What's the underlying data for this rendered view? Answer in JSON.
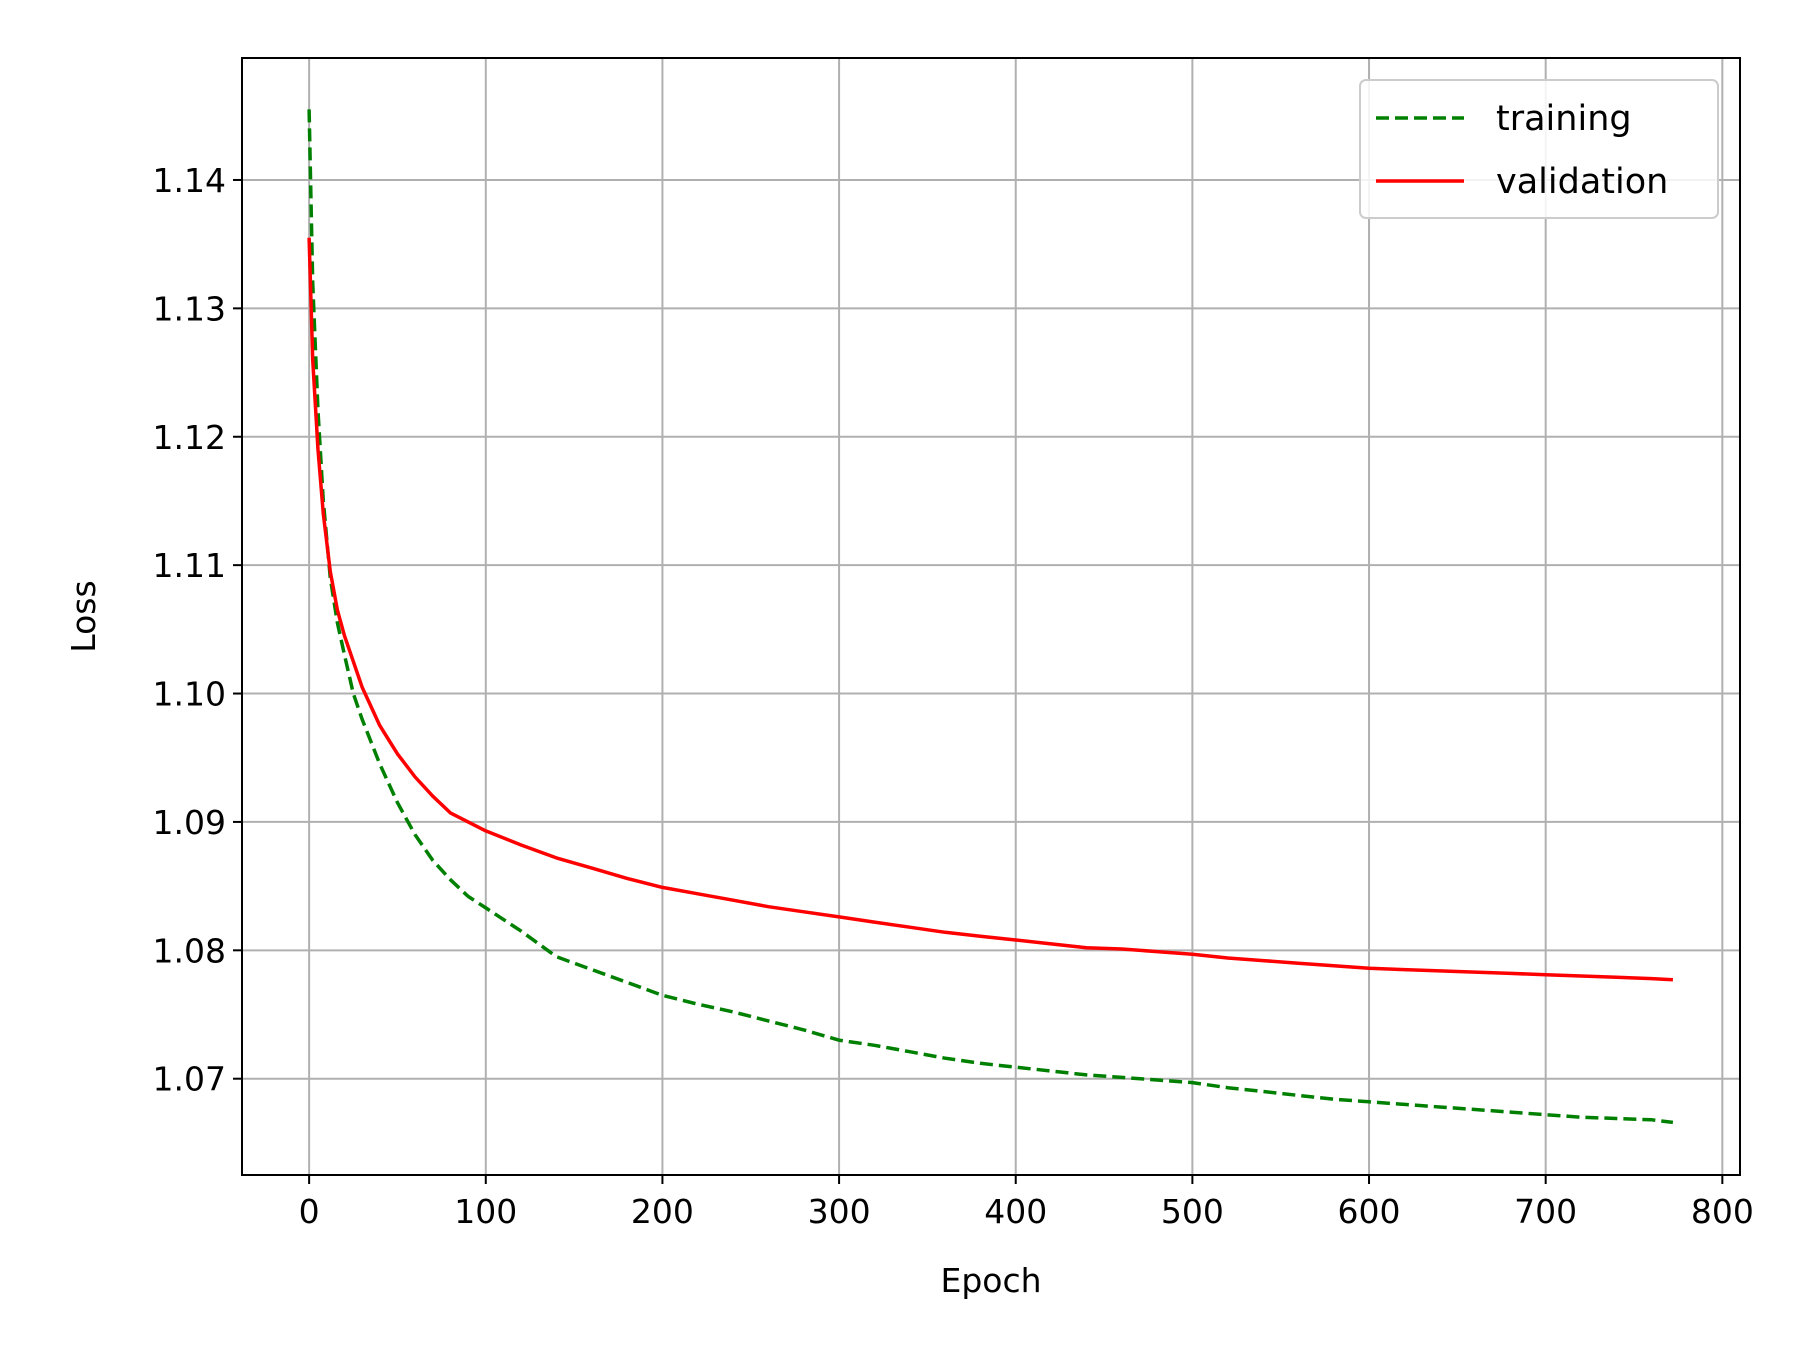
{
  "chart_data": {
    "type": "line",
    "title": "",
    "xlabel": "Epoch",
    "ylabel": "Loss",
    "xlim": [
      -38,
      810
    ],
    "ylim": [
      1.0625,
      1.1495
    ],
    "xticks": [
      0,
      100,
      200,
      300,
      400,
      500,
      600,
      700,
      800
    ],
    "yticks": [
      1.07,
      1.08,
      1.09,
      1.1,
      1.11,
      1.12,
      1.13,
      1.14
    ],
    "ytick_labels": [
      "1.07",
      "1.08",
      "1.09",
      "1.10",
      "1.11",
      "1.12",
      "1.13",
      "1.14"
    ],
    "grid": true,
    "legend_position": "top-right",
    "series": [
      {
        "name": "training",
        "color": "#008000",
        "style": "dashed",
        "x": [
          0,
          2,
          5,
          8,
          12,
          16,
          20,
          25,
          30,
          40,
          50,
          60,
          70,
          80,
          90,
          100,
          120,
          140,
          160,
          180,
          200,
          220,
          240,
          260,
          280,
          300,
          320,
          340,
          360,
          380,
          400,
          420,
          440,
          460,
          480,
          500,
          520,
          540,
          560,
          580,
          600,
          620,
          640,
          660,
          680,
          700,
          720,
          740,
          760,
          772
        ],
        "y": [
          1.1455,
          1.132,
          1.122,
          1.115,
          1.109,
          1.1055,
          1.103,
          1.1,
          1.098,
          1.0945,
          1.0915,
          1.089,
          1.087,
          1.0855,
          1.0842,
          1.0833,
          1.0815,
          1.0795,
          1.0785,
          1.0775,
          1.0765,
          1.0758,
          1.0752,
          1.0745,
          1.0738,
          1.073,
          1.0726,
          1.0721,
          1.0716,
          1.0712,
          1.0709,
          1.0706,
          1.0703,
          1.0701,
          1.0699,
          1.0697,
          1.0693,
          1.069,
          1.0687,
          1.0684,
          1.0682,
          1.068,
          1.0678,
          1.0676,
          1.0674,
          1.0672,
          1.067,
          1.0669,
          1.0668,
          1.0666
        ]
      },
      {
        "name": "validation",
        "color": "#ff0000",
        "style": "solid",
        "x": [
          0,
          2,
          5,
          8,
          12,
          16,
          20,
          25,
          30,
          40,
          50,
          60,
          70,
          80,
          90,
          100,
          120,
          140,
          160,
          180,
          200,
          220,
          240,
          260,
          280,
          300,
          320,
          340,
          360,
          380,
          400,
          420,
          440,
          460,
          480,
          500,
          520,
          540,
          560,
          580,
          600,
          620,
          640,
          660,
          680,
          700,
          720,
          740,
          760,
          772
        ],
        "y": [
          1.1355,
          1.126,
          1.119,
          1.114,
          1.1095,
          1.1065,
          1.1045,
          1.1025,
          1.1005,
          1.0975,
          1.0953,
          1.0935,
          1.092,
          1.0907,
          1.09,
          1.0893,
          1.0882,
          1.0872,
          1.0864,
          1.0856,
          1.0849,
          1.0844,
          1.0839,
          1.0834,
          1.083,
          1.0826,
          1.0822,
          1.0818,
          1.0814,
          1.0811,
          1.0808,
          1.0805,
          1.0802,
          1.0801,
          1.0799,
          1.0797,
          1.0794,
          1.0792,
          1.079,
          1.0788,
          1.0786,
          1.0785,
          1.0784,
          1.0783,
          1.0782,
          1.0781,
          1.078,
          1.0779,
          1.0778,
          1.0777
        ]
      }
    ]
  }
}
